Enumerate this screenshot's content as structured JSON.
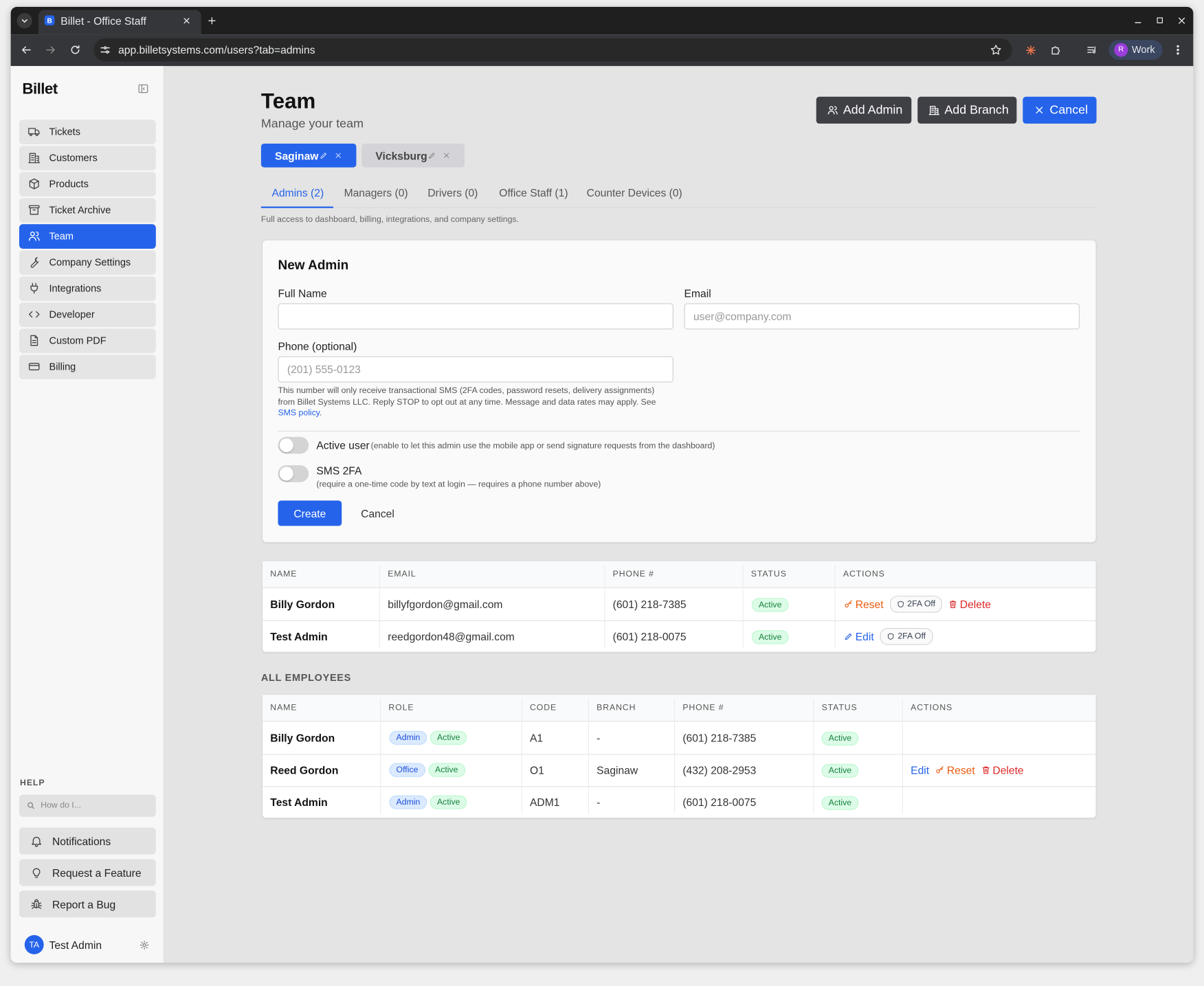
{
  "browser": {
    "tab_icon": "B",
    "tab_title": "Billet - Office Staff",
    "url": "app.billetsystems.com/users?tab=admins",
    "profile_initial": "R",
    "profile_label": "Work"
  },
  "sidebar": {
    "brand": "Billet",
    "nav": [
      "Tickets",
      "Customers",
      "Products",
      "Ticket Archive",
      "Team",
      "Company Settings",
      "Integrations",
      "Developer",
      "Custom PDF",
      "Billing"
    ],
    "help_heading": "HELP",
    "search_placeholder": "How do I...",
    "help_links": [
      "Notifications",
      "Request a Feature",
      "Report a Bug"
    ],
    "user": {
      "initials": "TA",
      "name": "Test Admin"
    }
  },
  "header": {
    "title": "Team",
    "subtitle": "Manage your team",
    "buttons": [
      "Add Admin",
      "Add Branch",
      "Cancel"
    ]
  },
  "branches": [
    "Saginaw",
    "Vicksburg"
  ],
  "tabs": [
    "Admins (2)",
    "Managers (0)",
    "Drivers (0)",
    "Office Staff (1)",
    "Counter Devices (0)"
  ],
  "tab_description": "Full access to dashboard, billing, integrations, and company settings.",
  "form": {
    "title": "New Admin",
    "full_name_label": "Full Name",
    "email_label": "Email",
    "email_placeholder": "user@company.com",
    "phone_label": "Phone (optional)",
    "phone_placeholder": "(201) 555-0123",
    "sms_notice": "This number will only receive transactional SMS (2FA codes, password resets, delivery assignments) from Billet Systems LLC. Reply STOP to opt out at any time. Message and data rates may apply. See",
    "sms_link": "SMS policy",
    "sms_notice_end": ".",
    "active_user_label": "Active user",
    "active_user_hint": "(enable to let this admin use the mobile app or send signature requests from the dashboard)",
    "sms_2fa_label": "SMS 2FA",
    "sms_2fa_hint": "(require a one-time code by text at login — requires a phone number above)",
    "create": "Create",
    "cancel": "Cancel"
  },
  "admins_table": {
    "columns": [
      "NAME",
      "EMAIL",
      "PHONE #",
      "STATUS",
      "ACTIONS"
    ],
    "rows": [
      {
        "name": "Billy Gordon",
        "email": "billyfgordon@gmail.com",
        "phone": "(601) 218-7385",
        "status": "Active",
        "actions": [
          "Reset",
          "2FA Off",
          "Delete"
        ]
      },
      {
        "name": "Test Admin",
        "email": "reedgordon48@gmail.com",
        "phone": "(601) 218-0075",
        "status": "Active",
        "actions": [
          "Edit",
          "2FA Off"
        ]
      }
    ]
  },
  "employees_table": {
    "heading": "ALL EMPLOYEES",
    "columns": [
      "NAME",
      "ROLE",
      "CODE",
      "BRANCH",
      "PHONE #",
      "STATUS",
      "ACTIONS"
    ],
    "rows": [
      {
        "name": "Billy Gordon",
        "roles": [
          "Admin",
          "Active"
        ],
        "code": "A1",
        "branch": "-",
        "phone": "(601) 218-7385",
        "status": "Active",
        "actions": []
      },
      {
        "name": "Reed Gordon",
        "roles": [
          "Office",
          "Active"
        ],
        "code": "O1",
        "branch": "Saginaw",
        "phone": "(432) 208-2953",
        "status": "Active",
        "actions": [
          "Edit",
          "Reset",
          "Delete"
        ]
      },
      {
        "name": "Test Admin",
        "roles": [
          "Admin",
          "Active"
        ],
        "code": "ADM1",
        "branch": "-",
        "phone": "(601) 218-0075",
        "status": "Active",
        "actions": []
      }
    ]
  }
}
